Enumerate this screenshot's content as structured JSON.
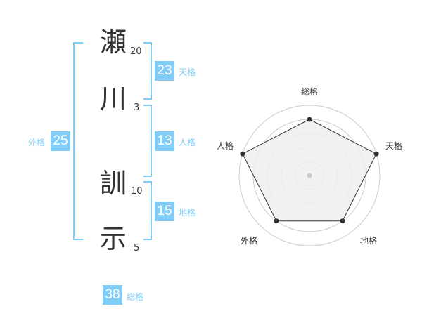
{
  "name": [
    {
      "char": "瀬",
      "strokes": "20"
    },
    {
      "char": "川",
      "strokes": "3"
    },
    {
      "char": "訓",
      "strokes": "10"
    },
    {
      "char": "示",
      "strokes": "5"
    }
  ],
  "fortunes": {
    "tenkaku": {
      "value": "23",
      "label": "天格"
    },
    "jinkaku": {
      "value": "13",
      "label": "人格"
    },
    "chikaku": {
      "value": "15",
      "label": "地格"
    },
    "gaikaku": {
      "value": "25",
      "label": "外格"
    },
    "soukaku": {
      "value": "38",
      "label": "総格"
    }
  },
  "colors": {
    "accent": "#82cdf8",
    "fill": "#eeeeee",
    "line": "#333333"
  },
  "chart_data": {
    "type": "radar",
    "axes": [
      "総格",
      "天格",
      "地格",
      "外格",
      "人格"
    ],
    "values": [
      4,
      5,
      4,
      4,
      5
    ],
    "rlim": [
      0,
      5
    ],
    "grid": true
  }
}
